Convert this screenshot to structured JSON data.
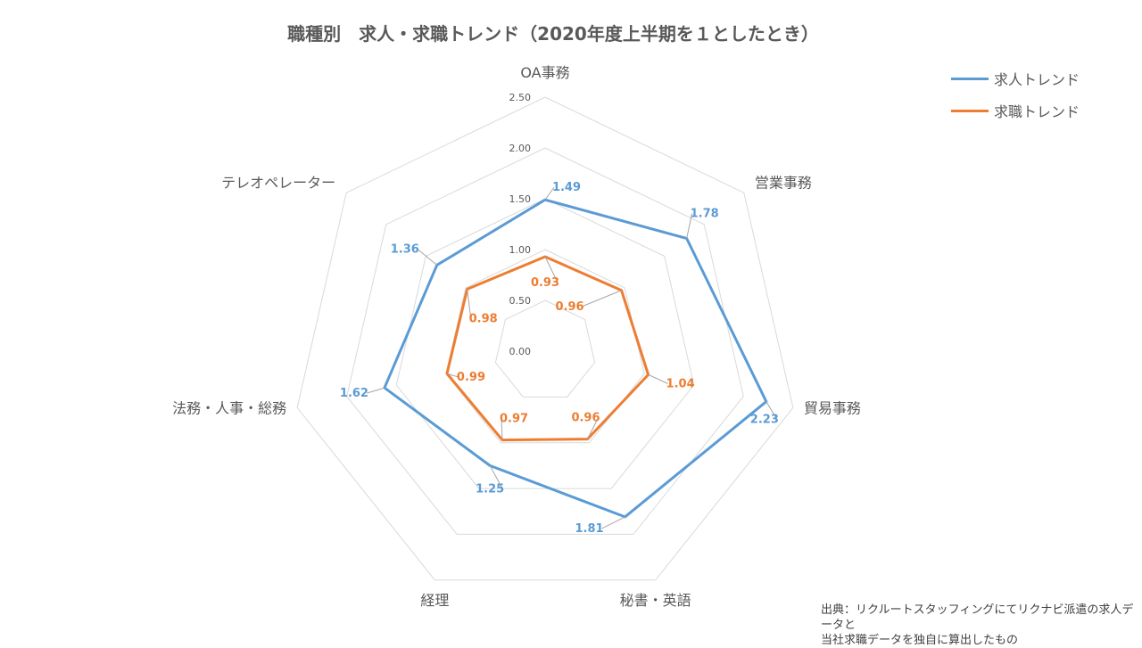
{
  "title": "職種別　求人・求職トレンド（2020年度上半期を１としたとき）",
  "legend": [
    {
      "label": "求人トレンド",
      "color": "#5B9BD5"
    },
    {
      "label": "求職トレンド",
      "color": "#ED7D31"
    }
  ],
  "source": {
    "line1": "出典：リクルートスタッフィングにてリクナビ派遣の求人データと",
    "line2": "当社求職データを独自に算出したもの"
  },
  "chart_data": {
    "type": "radar",
    "title": "職種別　求人・求職トレンド（2020年度上半期を１としたとき）",
    "categories": [
      "OA事務",
      "営業事務",
      "貿易事務",
      "秘書・英語",
      "経理",
      "法務・人事・総務",
      "テレオペレーター"
    ],
    "axis_range": [
      0,
      2.5
    ],
    "ticks": [
      "0.00",
      "0.50",
      "1.00",
      "1.50",
      "2.00",
      "2.50"
    ],
    "grid": true,
    "legend_position": "top-right",
    "series": [
      {
        "name": "求人トレンド",
        "color": "#5B9BD5",
        "values": [
          1.49,
          1.78,
          2.23,
          1.81,
          1.25,
          1.62,
          1.36
        ],
        "labels": [
          "1.49",
          "1.78",
          "2.23",
          "1.81",
          "1.25",
          "1.62",
          "1.36"
        ]
      },
      {
        "name": "求職トレンド",
        "color": "#ED7D31",
        "values": [
          0.93,
          0.96,
          1.04,
          0.96,
          0.97,
          0.99,
          0.98
        ],
        "labels": [
          "0.93",
          "0.96",
          "1.04",
          "0.96",
          "0.97",
          "0.99",
          "0.98"
        ]
      }
    ]
  }
}
